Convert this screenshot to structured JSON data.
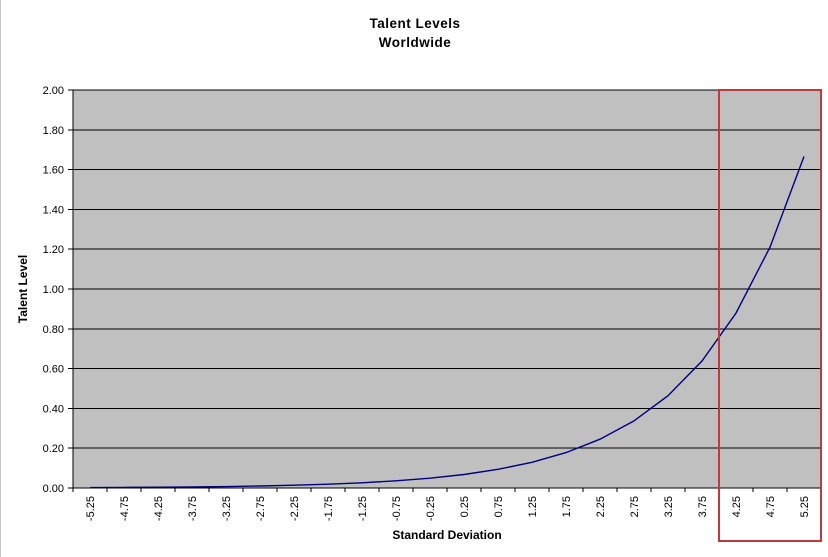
{
  "chart_data": {
    "type": "line",
    "title": "Talent Levels",
    "subtitle": "Worldwide",
    "xlabel": "Standard Deviation",
    "ylabel": "Talent Level",
    "x_labels": [
      "-5.25",
      "-4.75",
      "-4.25",
      "-3.75",
      "-3.25",
      "-2.75",
      "-2.25",
      "-1.75",
      "-1.25",
      "-0.75",
      "-0.25",
      "0.25",
      "0.75",
      "1.25",
      "1.75",
      "2.25",
      "2.75",
      "3.25",
      "3.75",
      "4.25",
      "4.75",
      "5.25"
    ],
    "x": [
      -5.25,
      -4.75,
      -4.25,
      -3.75,
      -3.25,
      -2.75,
      -2.25,
      -1.75,
      -1.25,
      -0.75,
      -0.25,
      0.25,
      0.75,
      1.25,
      1.75,
      2.25,
      2.75,
      3.25,
      3.75,
      4.25,
      4.75,
      5.25
    ],
    "y": [
      0.002,
      0.003,
      0.004,
      0.005,
      0.007,
      0.01,
      0.014,
      0.019,
      0.026,
      0.036,
      0.049,
      0.068,
      0.094,
      0.129,
      0.178,
      0.245,
      0.337,
      0.464,
      0.638,
      0.879,
      1.21,
      1.666
    ],
    "ylim": [
      0,
      2
    ],
    "ytick_step": 0.2,
    "ytick_decimals": 2,
    "grid": "horizontal-only",
    "legend_position": "none",
    "highlight_box": {
      "x_start": 4.0,
      "x_end": 5.5,
      "covers_labels": [
        "4.25",
        "4.75",
        "5.25"
      ]
    },
    "colors": {
      "line": "#000080",
      "plot_background": "#c0c0c0",
      "gridline": "#000000",
      "axis": "#000000",
      "tick_text": "#000000",
      "highlight_box": "#c03a3a",
      "chart_background": "#ffffff"
    }
  }
}
